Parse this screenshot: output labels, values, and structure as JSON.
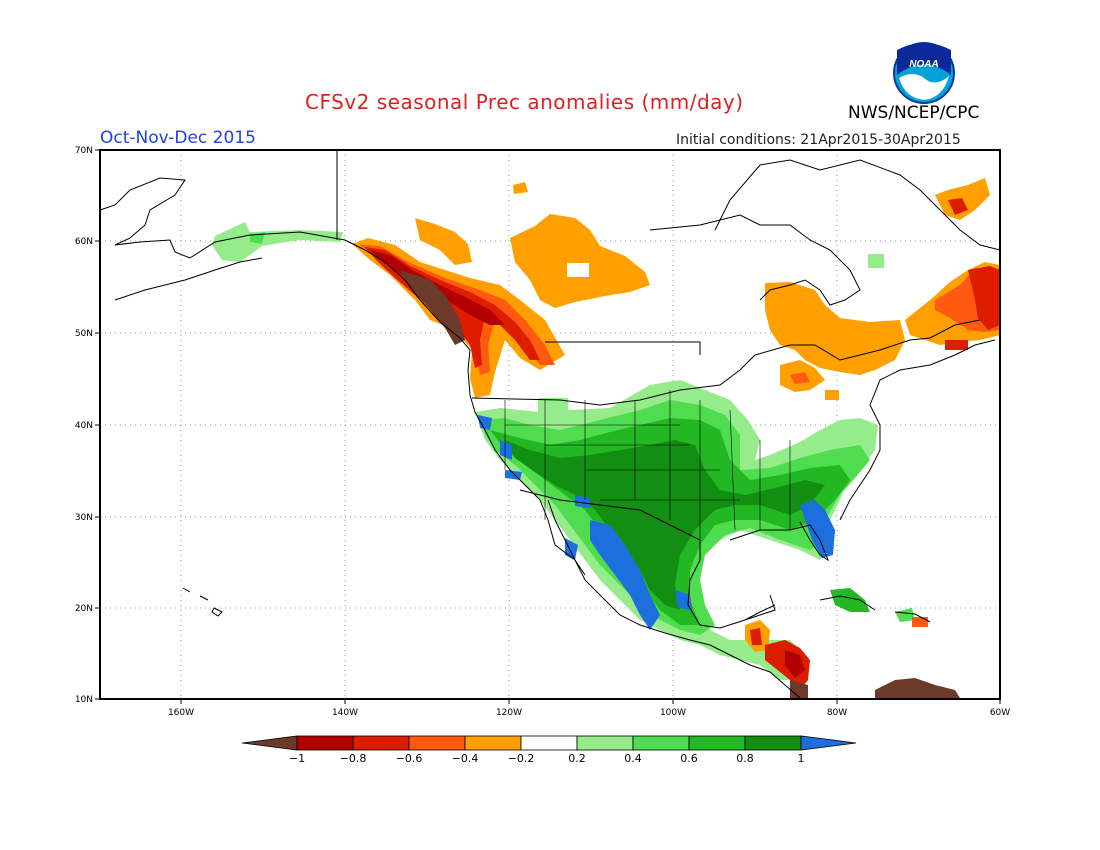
{
  "header": {
    "title": "CFSv2 seasonal Prec anomalies (mm/day)",
    "agency": "NWS/NCEP/CPC",
    "period": "Oct-Nov-Dec 2015",
    "initial_conditions": "Initial conditions: 21Apr2015-30Apr2015",
    "logo_text": "NOAA"
  },
  "map": {
    "lon_range": [
      -172,
      -60
    ],
    "lat_range": [
      10,
      70
    ],
    "lon_ticks": [
      "160W",
      "140W",
      "120W",
      "100W",
      "80W",
      "60W"
    ],
    "lat_ticks": [
      "70N",
      "60N",
      "50N",
      "40N",
      "30N",
      "20N",
      "10N"
    ]
  },
  "colorbar": {
    "labels": [
      "−1",
      "−0.8",
      "−0.6",
      "−0.4",
      "−0.2",
      "0.2",
      "0.4",
      "0.6",
      "0.8",
      "1"
    ],
    "colors": [
      "#6b3a2a",
      "#b20000",
      "#dd1c00",
      "#ff5a10",
      "#ff9f00",
      "#ffffff",
      "#96eb8a",
      "#4fdd4f",
      "#23b823",
      "#128f12",
      "#1e6fde"
    ]
  },
  "colors": {
    "title": "#e02020",
    "period": "#2040e0",
    "dark_brown": "#6b3a2a",
    "dark_red": "#b20000",
    "red": "#dd1c00",
    "orange_red": "#ff5a10",
    "orange": "#ff9f00",
    "light_green": "#96eb8a",
    "green": "#4fdd4f",
    "mid_green": "#23b823",
    "dark_green": "#128f12",
    "blue": "#1e6fde"
  }
}
